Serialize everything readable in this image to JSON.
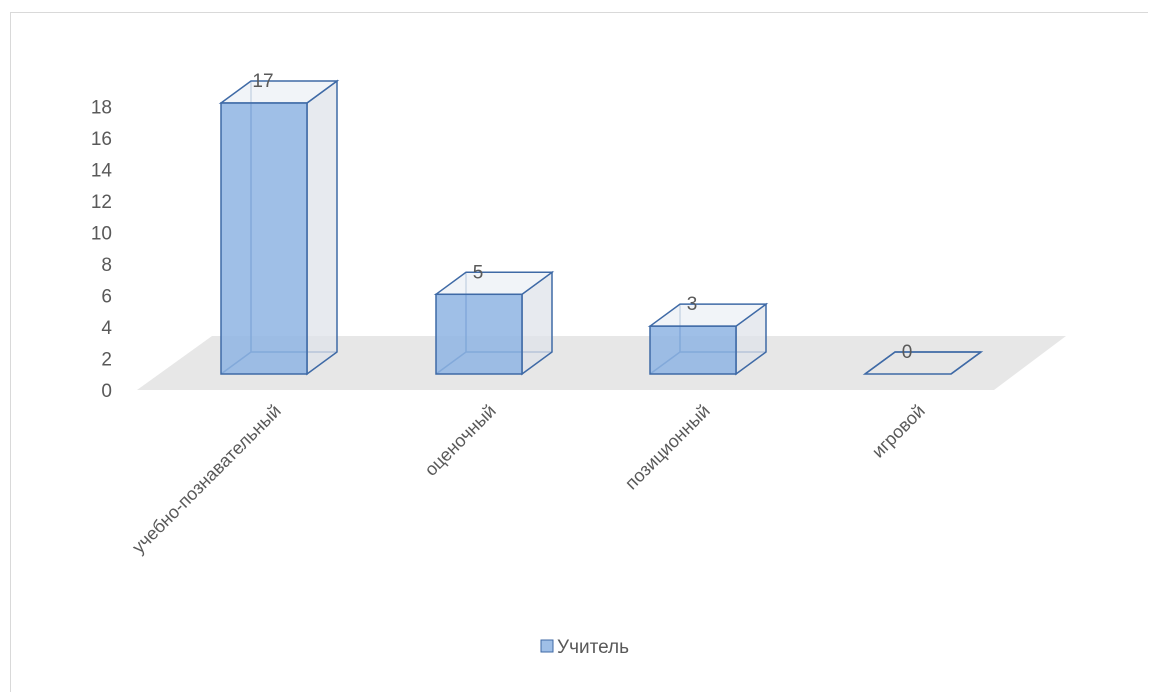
{
  "chart_data": {
    "type": "bar",
    "categories": [
      "учебно-познавательный",
      "оценочный",
      "позиционный",
      "игровой"
    ],
    "series": [
      {
        "name": "Учитель",
        "values": [
          17,
          5,
          3,
          0
        ]
      }
    ],
    "data_labels": [
      "17",
      "5",
      "3",
      "0"
    ],
    "y_ticks": [
      "0",
      "2",
      "4",
      "6",
      "8",
      "10",
      "12",
      "14",
      "16",
      "18"
    ],
    "ylim": [
      0,
      18
    ],
    "three_d": true,
    "grid": false,
    "legend_position": "bottom",
    "colors": {
      "bar_front": "#8eb4e3",
      "bar_stroke": "#3f6aa6",
      "bar_side": "#dfe3ea",
      "floor": "#e7e7e7"
    }
  }
}
